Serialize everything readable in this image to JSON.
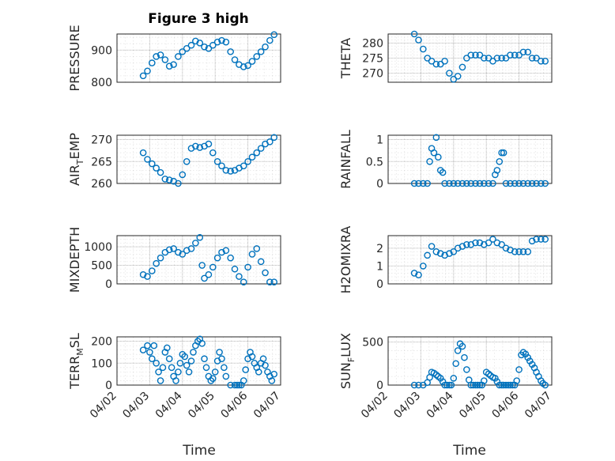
{
  "figure": {
    "title": "Figure 3 high",
    "xlabel": "Time",
    "marker_color": "#0072bd"
  },
  "chart_data": [
    {
      "type": "scatter",
      "ylabel": "PRESSURE",
      "xlim": [
        0,
        5
      ],
      "ylim": [
        800,
        950
      ],
      "xticks": [],
      "yticks": [
        800,
        900
      ],
      "grid": true,
      "minor_grid": true,
      "x": [
        0.8,
        0.93,
        1.07,
        1.2,
        1.33,
        1.47,
        1.6,
        1.73,
        1.87,
        2.0,
        2.13,
        2.27,
        2.4,
        2.53,
        2.67,
        2.8,
        2.93,
        3.07,
        3.2,
        3.33,
        3.47,
        3.6,
        3.73,
        3.87,
        4.0,
        4.13,
        4.27,
        4.4,
        4.53,
        4.67,
        4.8
      ],
      "y": [
        820,
        835,
        860,
        880,
        885,
        870,
        850,
        855,
        880,
        895,
        905,
        915,
        928,
        922,
        910,
        905,
        915,
        925,
        930,
        925,
        895,
        870,
        855,
        848,
        852,
        865,
        880,
        895,
        910,
        930,
        948
      ]
    },
    {
      "type": "scatter",
      "ylabel": "THETA",
      "xlim": [
        0,
        5
      ],
      "ylim": [
        267,
        283
      ],
      "xticks": [],
      "yticks": [
        270,
        275,
        280
      ],
      "grid": true,
      "minor_grid": true,
      "x": [
        0.8,
        0.93,
        1.07,
        1.2,
        1.33,
        1.47,
        1.6,
        1.73,
        1.87,
        2.0,
        2.13,
        2.27,
        2.4,
        2.53,
        2.67,
        2.8,
        2.93,
        3.07,
        3.2,
        3.33,
        3.47,
        3.6,
        3.73,
        3.87,
        4.0,
        4.13,
        4.27,
        4.4,
        4.53,
        4.67,
        4.8
      ],
      "y": [
        283,
        281,
        278,
        275,
        274,
        273,
        273,
        274,
        270,
        268,
        269,
        272,
        275,
        276,
        276,
        276,
        275,
        275,
        274,
        275,
        275,
        275,
        276,
        276,
        276,
        277,
        277,
        275,
        275,
        274,
        274
      ]
    },
    {
      "type": "scatter",
      "ylabel": "AIR_TEMP",
      "xlim": [
        0,
        5
      ],
      "ylim": [
        260,
        271
      ],
      "xticks": [],
      "yticks": [
        260,
        265,
        270
      ],
      "grid": true,
      "minor_grid": true,
      "x": [
        0.8,
        0.93,
        1.07,
        1.2,
        1.33,
        1.47,
        1.6,
        1.73,
        1.87,
        2.0,
        2.13,
        2.27,
        2.4,
        2.53,
        2.67,
        2.8,
        2.93,
        3.07,
        3.2,
        3.33,
        3.47,
        3.6,
        3.73,
        3.87,
        4.0,
        4.13,
        4.27,
        4.4,
        4.53,
        4.67,
        4.8
      ],
      "y": [
        267,
        265.5,
        264.5,
        263.5,
        262.5,
        261,
        260.8,
        260.5,
        260,
        262,
        265,
        268,
        268.5,
        268.2,
        268.5,
        269,
        267,
        265,
        264,
        263,
        262.8,
        263,
        263.5,
        264,
        265,
        266,
        267,
        268,
        269,
        269.5,
        270.5
      ]
    },
    {
      "type": "scatter",
      "ylabel": "RAINFALL",
      "xlim": [
        0,
        5
      ],
      "ylim": [
        0,
        1.1
      ],
      "xticks": [],
      "yticks": [
        0,
        0.5,
        1
      ],
      "grid": true,
      "minor_grid": true,
      "x": [
        0.8,
        0.93,
        1.07,
        1.2,
        1.27,
        1.33,
        1.4,
        1.47,
        1.53,
        1.6,
        1.67,
        1.73,
        1.87,
        2.0,
        2.13,
        2.27,
        2.4,
        2.53,
        2.67,
        2.8,
        2.93,
        3.07,
        3.2,
        3.27,
        3.33,
        3.4,
        3.47,
        3.53,
        3.6,
        3.73,
        3.87,
        4.0,
        4.13,
        4.27,
        4.4,
        4.53,
        4.67,
        4.8
      ],
      "y": [
        0,
        0,
        0,
        0,
        0.5,
        0.8,
        0.7,
        1.05,
        0.6,
        0.3,
        0.25,
        0,
        0,
        0,
        0,
        0,
        0,
        0,
        0,
        0,
        0,
        0,
        0,
        0.2,
        0.3,
        0.5,
        0.7,
        0.7,
        0,
        0,
        0,
        0,
        0,
        0,
        0,
        0,
        0,
        0
      ]
    },
    {
      "type": "scatter",
      "ylabel": "MIXDEPTH",
      "xlim": [
        0,
        5
      ],
      "ylim": [
        0,
        1300
      ],
      "xticks": [],
      "yticks": [
        0,
        500,
        1000
      ],
      "grid": true,
      "minor_grid": true,
      "x": [
        0.8,
        0.93,
        1.07,
        1.2,
        1.33,
        1.47,
        1.6,
        1.73,
        1.87,
        2.0,
        2.13,
        2.27,
        2.4,
        2.53,
        2.6,
        2.67,
        2.8,
        2.93,
        3.07,
        3.2,
        3.33,
        3.47,
        3.6,
        3.73,
        3.87,
        4.0,
        4.13,
        4.27,
        4.4,
        4.53,
        4.67,
        4.8
      ],
      "y": [
        250,
        200,
        350,
        550,
        700,
        850,
        920,
        950,
        850,
        800,
        900,
        950,
        1100,
        1250,
        500,
        150,
        250,
        450,
        700,
        850,
        900,
        700,
        400,
        200,
        50,
        450,
        800,
        950,
        600,
        300,
        50,
        50
      ]
    },
    {
      "type": "scatter",
      "ylabel": "H2OMIXRA",
      "xlim": [
        0,
        5
      ],
      "ylim": [
        0,
        2.7
      ],
      "xticks": [],
      "yticks": [
        0,
        1,
        2
      ],
      "grid": true,
      "minor_grid": true,
      "x": [
        0.8,
        0.93,
        1.07,
        1.2,
        1.33,
        1.47,
        1.6,
        1.73,
        1.87,
        2.0,
        2.13,
        2.27,
        2.4,
        2.53,
        2.67,
        2.8,
        2.93,
        3.07,
        3.2,
        3.33,
        3.47,
        3.6,
        3.73,
        3.87,
        4.0,
        4.13,
        4.27,
        4.4,
        4.53,
        4.67,
        4.8
      ],
      "y": [
        0.6,
        0.5,
        1.0,
        1.6,
        2.1,
        1.8,
        1.7,
        1.6,
        1.7,
        1.8,
        2.0,
        2.1,
        2.2,
        2.2,
        2.3,
        2.3,
        2.2,
        2.3,
        2.5,
        2.3,
        2.2,
        2.0,
        1.9,
        1.8,
        1.8,
        1.8,
        1.8,
        2.4,
        2.5,
        2.5,
        2.5
      ]
    },
    {
      "type": "scatter",
      "ylabel": "TERR_MSL",
      "xlim": [
        0,
        5
      ],
      "ylim": [
        0,
        220
      ],
      "xticks": [
        "04/02",
        "04/03",
        "04/04",
        "04/05",
        "04/06",
        "04/07"
      ],
      "yticks": [
        0,
        100,
        200
      ],
      "grid": true,
      "minor_grid": true,
      "x": [
        0.8,
        0.93,
        1.0,
        1.07,
        1.13,
        1.2,
        1.27,
        1.33,
        1.4,
        1.47,
        1.53,
        1.6,
        1.67,
        1.73,
        1.8,
        1.87,
        1.93,
        2.0,
        2.07,
        2.13,
        2.2,
        2.27,
        2.33,
        2.4,
        2.47,
        2.53,
        2.6,
        2.67,
        2.73,
        2.8,
        2.87,
        2.93,
        3.0,
        3.07,
        3.13,
        3.2,
        3.27,
        3.33,
        3.47,
        3.6,
        3.67,
        3.73,
        3.8,
        3.87,
        3.93,
        4.0,
        4.07,
        4.13,
        4.2,
        4.27,
        4.33,
        4.4,
        4.47,
        4.53,
        4.6,
        4.67,
        4.73,
        4.8
      ],
      "y": [
        160,
        180,
        150,
        120,
        180,
        100,
        60,
        20,
        80,
        150,
        170,
        120,
        80,
        40,
        20,
        60,
        100,
        140,
        130,
        90,
        60,
        110,
        150,
        180,
        200,
        210,
        190,
        120,
        80,
        40,
        20,
        30,
        60,
        110,
        150,
        120,
        80,
        40,
        0,
        0,
        0,
        0,
        0,
        20,
        70,
        120,
        150,
        130,
        100,
        80,
        60,
        100,
        120,
        90,
        60,
        40,
        20,
        50
      ]
    },
    {
      "type": "scatter",
      "ylabel": "SUN_FLUX",
      "xlim": [
        0,
        5
      ],
      "ylim": [
        0,
        560
      ],
      "xticks": [
        "04/02",
        "04/03",
        "04/04",
        "04/05",
        "04/06",
        "04/07"
      ],
      "yticks": [
        0,
        500
      ],
      "grid": true,
      "minor_grid": true,
      "x": [
        0.8,
        0.93,
        1.07,
        1.2,
        1.27,
        1.33,
        1.4,
        1.47,
        1.53,
        1.6,
        1.67,
        1.73,
        1.8,
        1.87,
        1.93,
        2.0,
        2.07,
        2.13,
        2.2,
        2.27,
        2.33,
        2.4,
        2.47,
        2.53,
        2.6,
        2.67,
        2.73,
        2.8,
        2.87,
        2.93,
        3.0,
        3.07,
        3.13,
        3.2,
        3.27,
        3.33,
        3.4,
        3.47,
        3.53,
        3.6,
        3.67,
        3.73,
        3.8,
        3.87,
        3.93,
        4.0,
        4.07,
        4.13,
        4.2,
        4.27,
        4.33,
        4.4,
        4.47,
        4.53,
        4.6,
        4.67,
        4.73,
        4.8
      ],
      "y": [
        0,
        0,
        0,
        30,
        90,
        150,
        140,
        120,
        100,
        80,
        40,
        0,
        0,
        0,
        0,
        80,
        250,
        400,
        480,
        450,
        320,
        180,
        60,
        0,
        0,
        0,
        0,
        0,
        0,
        50,
        150,
        130,
        110,
        90,
        80,
        40,
        0,
        0,
        0,
        0,
        0,
        0,
        0,
        0,
        50,
        180,
        350,
        380,
        360,
        320,
        280,
        240,
        200,
        150,
        100,
        50,
        20,
        0
      ]
    }
  ]
}
